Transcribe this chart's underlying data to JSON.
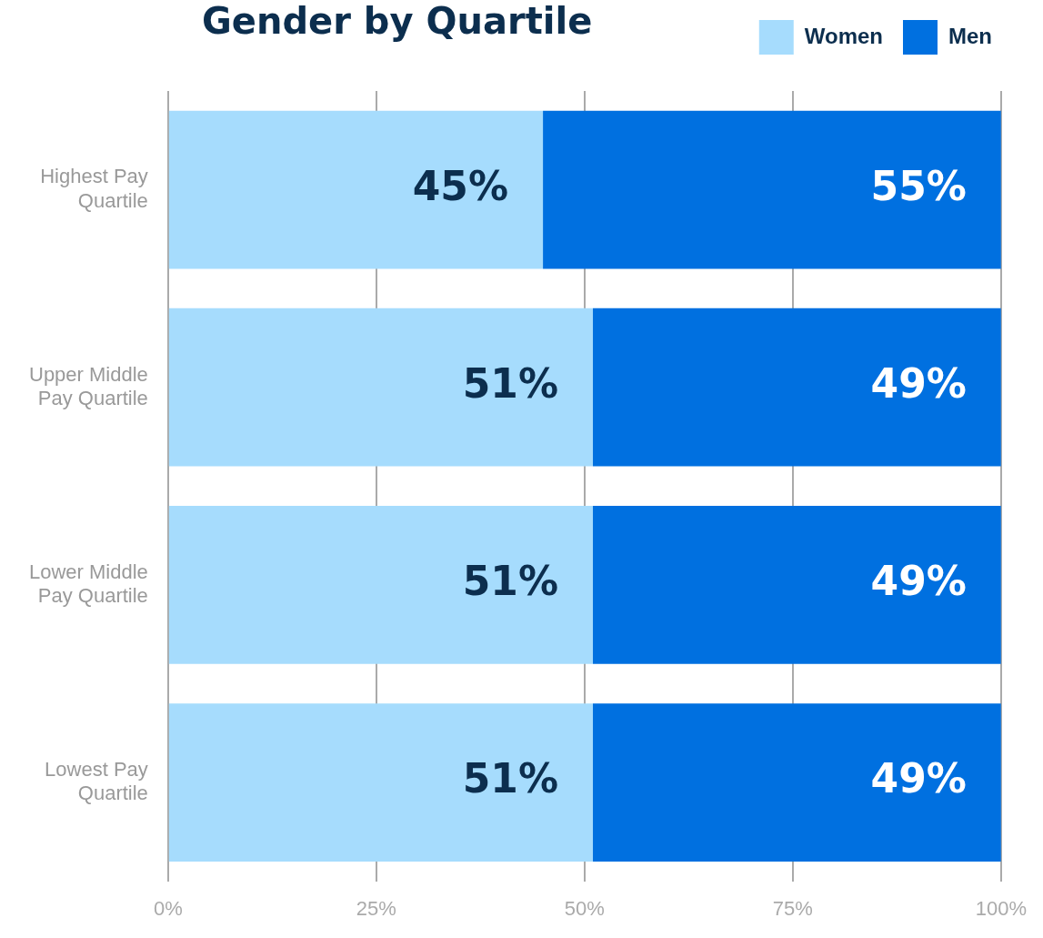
{
  "chart_data": {
    "type": "bar",
    "orientation": "horizontal",
    "stacked": true,
    "title": "Gender by Quartile",
    "categories": [
      "Highest Pay Quartile",
      "Upper Middle Pay Quartile",
      "Lower Middle Pay Quartile",
      "Lowest Pay Quartile"
    ],
    "series": [
      {
        "name": "Women",
        "color": "#a6dcfd",
        "values": [
          45,
          51,
          51,
          51
        ],
        "value_labels": [
          "45%",
          "51%",
          "51%",
          "51%"
        ]
      },
      {
        "name": "Men",
        "color": "#0070e0",
        "values": [
          55,
          49,
          49,
          49
        ],
        "value_labels": [
          "55%",
          "49%",
          "49%",
          "49%"
        ]
      }
    ],
    "xlim": [
      0,
      100
    ],
    "xticks": [
      {
        "value": 0,
        "label": "0%"
      },
      {
        "value": 25,
        "label": "25%"
      },
      {
        "value": 50,
        "label": "50%"
      },
      {
        "value": 75,
        "label": "75%"
      },
      {
        "value": 100,
        "label": "100%"
      }
    ],
    "grid": "x",
    "legend": "top right"
  }
}
